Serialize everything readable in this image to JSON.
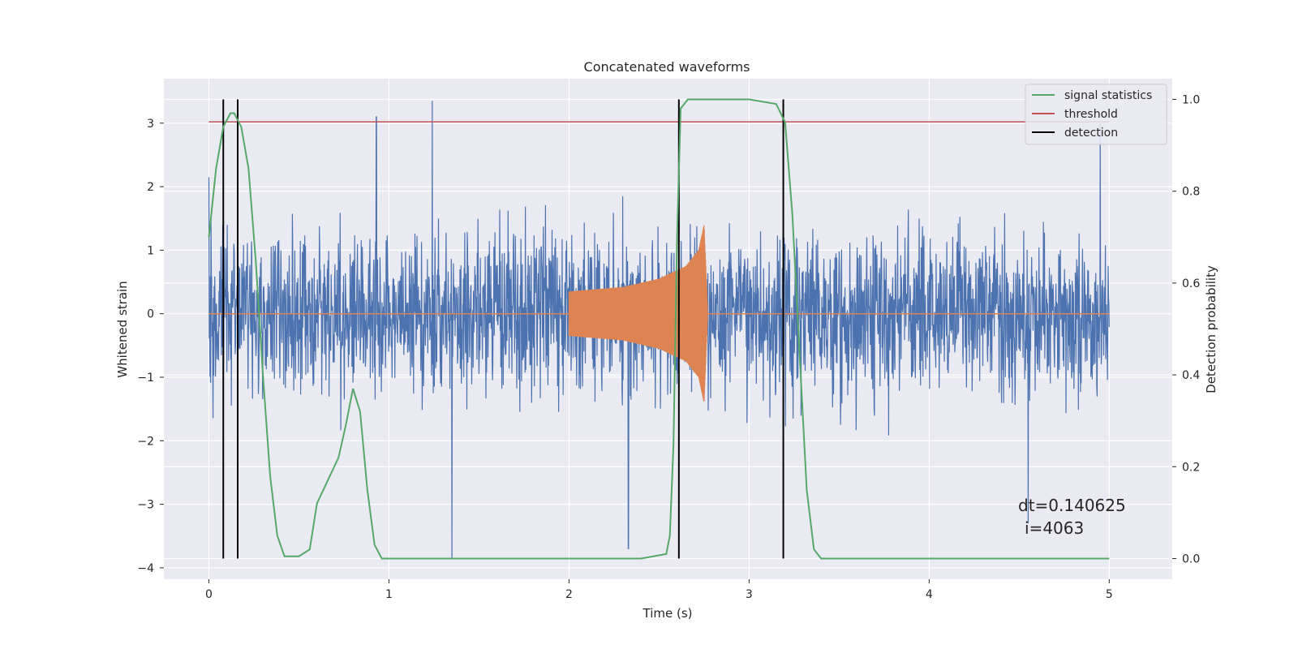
{
  "chart_data": {
    "type": "line",
    "title": "Concatenated waveforms",
    "xlabel": "Time (s)",
    "ylabel": "Whitened strain",
    "y2label": "Detection probability",
    "xlim": [
      -0.25,
      5.35
    ],
    "ylim": [
      -4.18,
      3.7
    ],
    "y2lim": [
      -0.045,
      1.045
    ],
    "xticks": [
      0,
      1,
      2,
      3,
      4,
      5
    ],
    "xtick_labels": [
      "0",
      "1",
      "2",
      "3",
      "4",
      "5"
    ],
    "yticks": [
      -4,
      -3,
      -2,
      -1,
      0,
      1,
      2,
      3
    ],
    "ytick_labels": [
      "−4",
      "−3",
      "−2",
      "−1",
      "0",
      "1",
      "2",
      "3"
    ],
    "y2ticks": [
      0.0,
      0.2,
      0.4,
      0.6,
      0.8,
      1.0
    ],
    "y2tick_labels": [
      "0.0",
      "0.2",
      "0.4",
      "0.6",
      "0.8",
      "1.0"
    ],
    "grid": true,
    "legend_position": "top-right",
    "colors": {
      "strain": "#4c72b0",
      "injection": "#dd8452",
      "signal_statistics": "#55a868",
      "threshold": "#c44e52",
      "detection": "#000000",
      "background": "#eaeaf2",
      "grid": "#ffffff"
    },
    "series": [
      {
        "name": "",
        "axis": "left",
        "description_values": "noise-dominated whitened strain, 0 to 5 s, amplitude mostly within ±3.4",
        "x_range": [
          0,
          5
        ],
        "extremes": [
          [
            0.0,
            2.15
          ],
          [
            0.93,
            3.1
          ],
          [
            1.24,
            3.35
          ],
          [
            1.35,
            -3.85
          ],
          [
            2.33,
            -3.7
          ],
          [
            4.55,
            -3.3
          ],
          [
            4.95,
            3.0
          ]
        ]
      },
      {
        "name": "",
        "axis": "left",
        "x_range": [
          2.0,
          2.77
        ],
        "chirp_envelope": [
          [
            2.0,
            0.35
          ],
          [
            2.3,
            0.42
          ],
          [
            2.5,
            0.55
          ],
          [
            2.65,
            0.75
          ],
          [
            2.72,
            1.0
          ],
          [
            2.75,
            1.4
          ],
          [
            2.77,
            0.05
          ]
        ]
      },
      {
        "name": "signal statistics",
        "axis": "right",
        "x": [
          0.0,
          0.04,
          0.08,
          0.12,
          0.14,
          0.18,
          0.22,
          0.26,
          0.3,
          0.34,
          0.38,
          0.42,
          0.5,
          0.56,
          0.6,
          0.66,
          0.72,
          0.76,
          0.8,
          0.84,
          0.88,
          0.92,
          0.96,
          1.2,
          2.4,
          2.54,
          2.56,
          2.58,
          2.6,
          2.62,
          2.66,
          3.0,
          3.15,
          3.2,
          3.24,
          3.28,
          3.32,
          3.36,
          3.4,
          5.0
        ],
        "values": [
          0.7,
          0.85,
          0.94,
          0.97,
          0.97,
          0.94,
          0.85,
          0.65,
          0.4,
          0.18,
          0.05,
          0.005,
          0.005,
          0.02,
          0.12,
          0.17,
          0.22,
          0.29,
          0.37,
          0.32,
          0.15,
          0.03,
          0.0,
          0.0,
          0.0,
          0.01,
          0.05,
          0.25,
          0.7,
          0.98,
          1.0,
          1.0,
          0.99,
          0.95,
          0.75,
          0.45,
          0.15,
          0.02,
          0.0,
          0.0
        ]
      },
      {
        "name": "threshold",
        "axis": "left",
        "x": [
          0,
          5
        ],
        "values": [
          3.02,
          3.02
        ]
      }
    ],
    "detections": {
      "name": "detection",
      "x": [
        0.08,
        0.16,
        2.61,
        3.19
      ]
    },
    "annotation": {
      "line1": "dt=0.140625",
      "line2": "i=4063"
    }
  }
}
